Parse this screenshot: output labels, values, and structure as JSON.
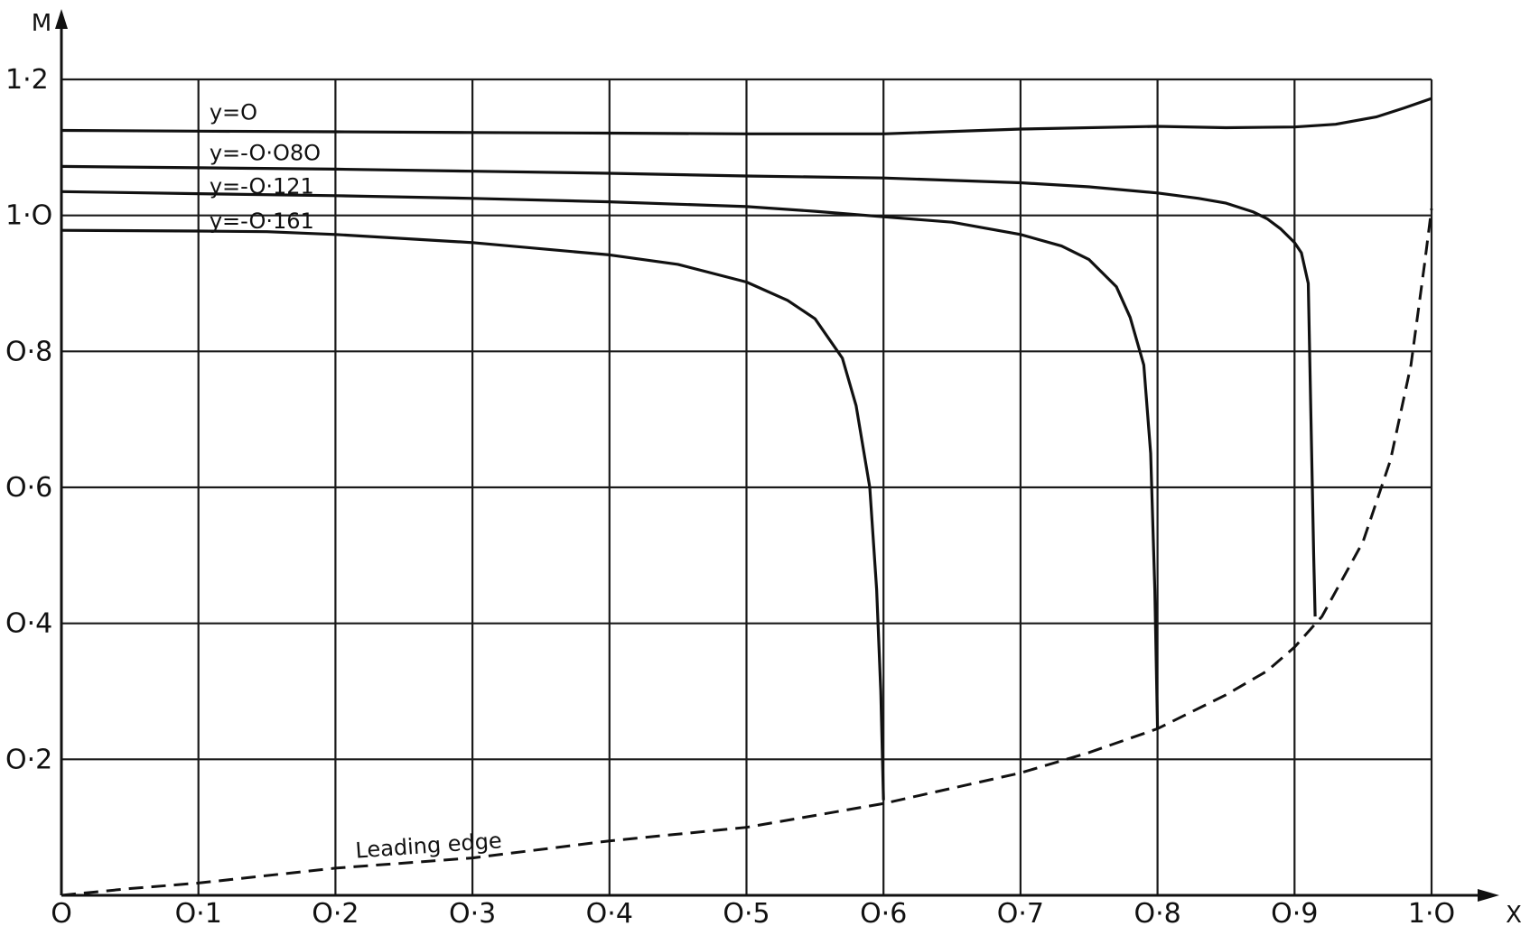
{
  "chart_data": {
    "type": "line",
    "title": "",
    "xlabel": "X",
    "ylabel": "M",
    "xlim": [
      0,
      1.0
    ],
    "ylim": [
      0,
      1.2
    ],
    "grid": true,
    "x_tick_labels": [
      "O",
      "O·1",
      "O·2",
      "O·3",
      "O·4",
      "O·5",
      "O·6",
      "O·7",
      "O·8",
      "O·9",
      "1·O"
    ],
    "y_tick_labels": [
      "O·2",
      "O·4",
      "O·6",
      "O·8",
      "1·O",
      "1·2"
    ],
    "x_ticks": [
      0,
      0.1,
      0.2,
      0.3,
      0.4,
      0.5,
      0.6,
      0.7,
      0.8,
      0.9,
      1.0
    ],
    "y_ticks": [
      0.2,
      0.4,
      0.6,
      0.8,
      1.0,
      1.2
    ],
    "series": [
      {
        "name": "y=O",
        "style": "solid",
        "x": [
          0,
          0.1,
          0.2,
          0.3,
          0.4,
          0.5,
          0.6,
          0.7,
          0.8,
          0.85,
          0.9,
          0.93,
          0.96,
          0.98,
          1.0
        ],
        "y": [
          1.125,
          1.124,
          1.123,
          1.122,
          1.121,
          1.12,
          1.12,
          1.127,
          1.131,
          1.129,
          1.13,
          1.134,
          1.145,
          1.158,
          1.172
        ]
      },
      {
        "name": "y=-O·O8O",
        "style": "solid",
        "x": [
          0,
          0.1,
          0.2,
          0.3,
          0.4,
          0.5,
          0.6,
          0.7,
          0.75,
          0.8,
          0.83,
          0.85,
          0.87,
          0.88,
          0.89,
          0.9,
          0.905,
          0.91,
          0.912,
          0.914,
          0.915
        ],
        "y": [
          1.072,
          1.07,
          1.068,
          1.065,
          1.062,
          1.058,
          1.055,
          1.048,
          1.042,
          1.033,
          1.025,
          1.018,
          1.005,
          0.995,
          0.98,
          0.96,
          0.945,
          0.9,
          0.7,
          0.5,
          0.41
        ]
      },
      {
        "name": "y=-O·121",
        "style": "solid",
        "x": [
          0,
          0.1,
          0.2,
          0.3,
          0.4,
          0.5,
          0.55,
          0.6,
          0.65,
          0.7,
          0.73,
          0.75,
          0.77,
          0.78,
          0.79,
          0.795,
          0.798,
          0.8
        ],
        "y": [
          1.035,
          1.032,
          1.029,
          1.025,
          1.02,
          1.013,
          1.006,
          0.998,
          0.99,
          0.972,
          0.955,
          0.935,
          0.895,
          0.85,
          0.78,
          0.65,
          0.45,
          0.245
        ]
      },
      {
        "name": "y=-O·161",
        "style": "solid",
        "x": [
          0,
          0.1,
          0.15,
          0.2,
          0.3,
          0.4,
          0.45,
          0.5,
          0.53,
          0.55,
          0.57,
          0.58,
          0.59,
          0.595,
          0.598,
          0.6
        ],
        "y": [
          0.978,
          0.977,
          0.976,
          0.972,
          0.96,
          0.942,
          0.928,
          0.902,
          0.875,
          0.848,
          0.79,
          0.72,
          0.6,
          0.45,
          0.3,
          0.14
        ]
      },
      {
        "name": "Leading edge",
        "style": "dashed",
        "x": [
          0,
          0.05,
          0.1,
          0.2,
          0.3,
          0.4,
          0.5,
          0.6,
          0.7,
          0.75,
          0.8,
          0.85,
          0.88,
          0.9,
          0.92,
          0.95,
          0.97,
          0.985,
          0.995,
          1.0
        ],
        "y": [
          0,
          0.01,
          0.018,
          0.04,
          0.055,
          0.08,
          0.1,
          0.135,
          0.18,
          0.21,
          0.245,
          0.295,
          0.33,
          0.365,
          0.41,
          0.52,
          0.64,
          0.78,
          0.93,
          1.01
        ]
      }
    ],
    "annotations": [
      {
        "text": "y=O",
        "x": 0.108,
        "y": 1.153
      },
      {
        "text": "y=-O·O8O",
        "x": 0.108,
        "y": 1.093
      },
      {
        "text": "y=-O·121",
        "x": 0.108,
        "y": 1.044
      },
      {
        "text": "y=-O·161",
        "x": 0.108,
        "y": 0.993
      },
      {
        "text": "Leading edge",
        "x": 0.215,
        "y": 0.055
      }
    ]
  }
}
